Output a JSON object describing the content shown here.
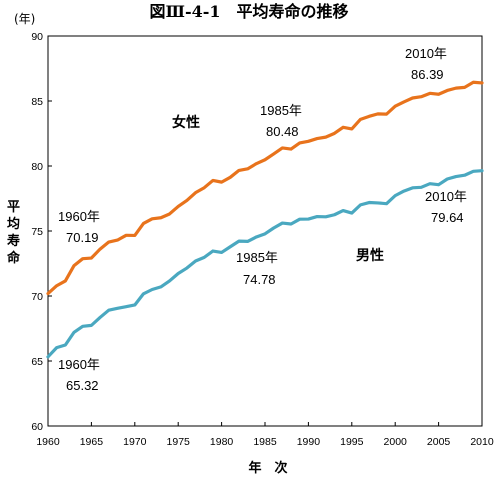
{
  "chart_data": {
    "type": "line",
    "title": "図Ⅲ-4-1　平均寿命の推移",
    "ylabel_unit": "(年)",
    "ylabel": "平均寿命",
    "xlabel": "年　次",
    "ylim": [
      60,
      90
    ],
    "xlim": [
      1960,
      2010
    ],
    "yticks": [
      60,
      65,
      70,
      75,
      80,
      85,
      90
    ],
    "xticks": [
      1960,
      1965,
      1970,
      1975,
      1980,
      1985,
      1990,
      1995,
      2000,
      2005,
      2010
    ],
    "grid": false,
    "x": [
      1960,
      1961,
      1962,
      1963,
      1964,
      1965,
      1966,
      1967,
      1968,
      1969,
      1970,
      1971,
      1972,
      1973,
      1974,
      1975,
      1976,
      1977,
      1978,
      1979,
      1980,
      1981,
      1982,
      1983,
      1984,
      1985,
      1986,
      1987,
      1988,
      1989,
      1990,
      1991,
      1992,
      1993,
      1994,
      1995,
      1996,
      1997,
      1998,
      1999,
      2000,
      2001,
      2002,
      2003,
      2004,
      2005,
      2006,
      2007,
      2008,
      2009,
      2010
    ],
    "series": [
      {
        "name": "女性",
        "color": "#e8731c",
        "values": [
          70.19,
          70.79,
          71.16,
          72.34,
          72.87,
          72.92,
          73.61,
          74.15,
          74.3,
          74.67,
          74.66,
          75.58,
          75.94,
          76.02,
          76.31,
          76.89,
          77.35,
          77.95,
          78.33,
          78.89,
          78.76,
          79.13,
          79.66,
          79.78,
          80.18,
          80.48,
          80.93,
          81.39,
          81.3,
          81.77,
          81.9,
          82.11,
          82.22,
          82.51,
          82.98,
          82.85,
          83.59,
          83.82,
          84.01,
          83.99,
          84.6,
          84.93,
          85.23,
          85.33,
          85.59,
          85.52,
          85.81,
          85.99,
          86.05,
          86.44,
          86.39
        ]
      },
      {
        "name": "男性",
        "color": "#4aa8c0",
        "values": [
          65.32,
          66.03,
          66.23,
          67.21,
          67.67,
          67.74,
          68.35,
          68.91,
          69.05,
          69.18,
          69.31,
          70.17,
          70.5,
          70.7,
          71.16,
          71.73,
          72.15,
          72.69,
          72.97,
          73.46,
          73.35,
          73.79,
          74.22,
          74.2,
          74.54,
          74.78,
          75.23,
          75.61,
          75.54,
          75.91,
          75.92,
          76.11,
          76.09,
          76.25,
          76.57,
          76.38,
          77.01,
          77.19,
          77.16,
          77.1,
          77.72,
          78.07,
          78.32,
          78.36,
          78.64,
          78.56,
          79.0,
          79.19,
          79.29,
          79.59,
          79.64
        ]
      }
    ],
    "annotations": {
      "female_1960": {
        "year": "1960年",
        "value": "70.19"
      },
      "female_1985": {
        "year": "1985年",
        "value": "80.48"
      },
      "female_2010": {
        "year": "2010年",
        "value": "86.39"
      },
      "male_1960": {
        "year": "1960年",
        "value": "65.32"
      },
      "male_1985": {
        "year": "1985年",
        "value": "74.78"
      },
      "male_2010": {
        "year": "2010年",
        "value": "79.64"
      }
    }
  }
}
